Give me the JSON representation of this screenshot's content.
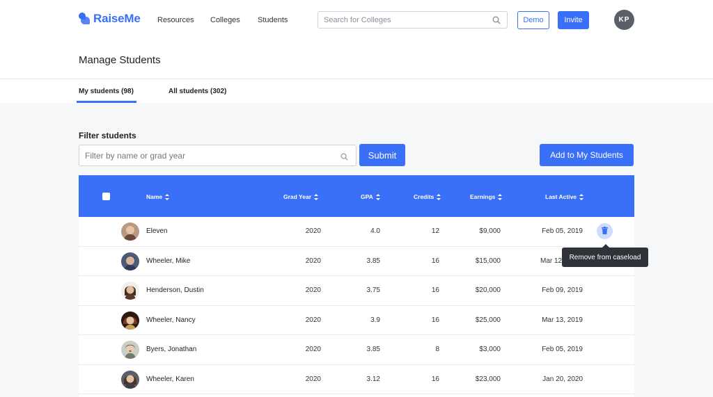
{
  "nav": {
    "brand": "RaiseMe",
    "links": [
      "Resources",
      "Colleges",
      "Students"
    ],
    "search_placeholder": "Search for Colleges",
    "demo_label": "Demo",
    "invite_label": "Invite",
    "user_initials": "KP"
  },
  "page": {
    "title": "Manage Students",
    "tabs": [
      {
        "label": "My students (98)",
        "active": true
      },
      {
        "label": "All students (302)",
        "active": false
      }
    ]
  },
  "filter": {
    "label": "Filter students",
    "placeholder": "Filter by name or grad year",
    "submit_label": "Submit",
    "add_label": "Add to My Students"
  },
  "table": {
    "columns": [
      "Name",
      "Grad Year",
      "GPA",
      "Credits",
      "Earnings",
      "Last Active"
    ],
    "rows": [
      {
        "name": "Eleven",
        "grad_year": "2020",
        "gpa": "4.0",
        "credits": "12",
        "earnings": "$9,000",
        "last_active": "Feb 05, 2019",
        "photo": "#7a5a44"
      },
      {
        "name": "Wheeler, Mike",
        "grad_year": "2020",
        "gpa": "3.85",
        "credits": "16",
        "earnings": "$15,000",
        "last_active": "Mar 12",
        "photo": "#2f3b57"
      },
      {
        "name": "Henderson, Dustin",
        "grad_year": "2020",
        "gpa": "3.75",
        "credits": "16",
        "earnings": "$20,000",
        "last_active": "Feb 09, 2019",
        "photo": "#5a3a2c"
      },
      {
        "name": "Wheeler, Nancy",
        "grad_year": "2020",
        "gpa": "3.9",
        "credits": "16",
        "earnings": "$25,000",
        "last_active": "Mar 13, 2019",
        "photo": "#3a2418"
      },
      {
        "name": "Byers, Jonathan",
        "grad_year": "2020",
        "gpa": "3.85",
        "credits": "8",
        "earnings": "$3,000",
        "last_active": "Feb 05, 2019",
        "photo": "#8f9a8a"
      },
      {
        "name": "Wheeler, Karen",
        "grad_year": "2020",
        "gpa": "3.12",
        "credits": "16",
        "earnings": "$23,000",
        "last_active": "Jan 20, 2020",
        "photo": "#4a4e58"
      }
    ],
    "tooltip": "Remove from caseload"
  },
  "colors": {
    "accent": "#3a6ff7",
    "tooltip_bg": "#2f3238"
  }
}
